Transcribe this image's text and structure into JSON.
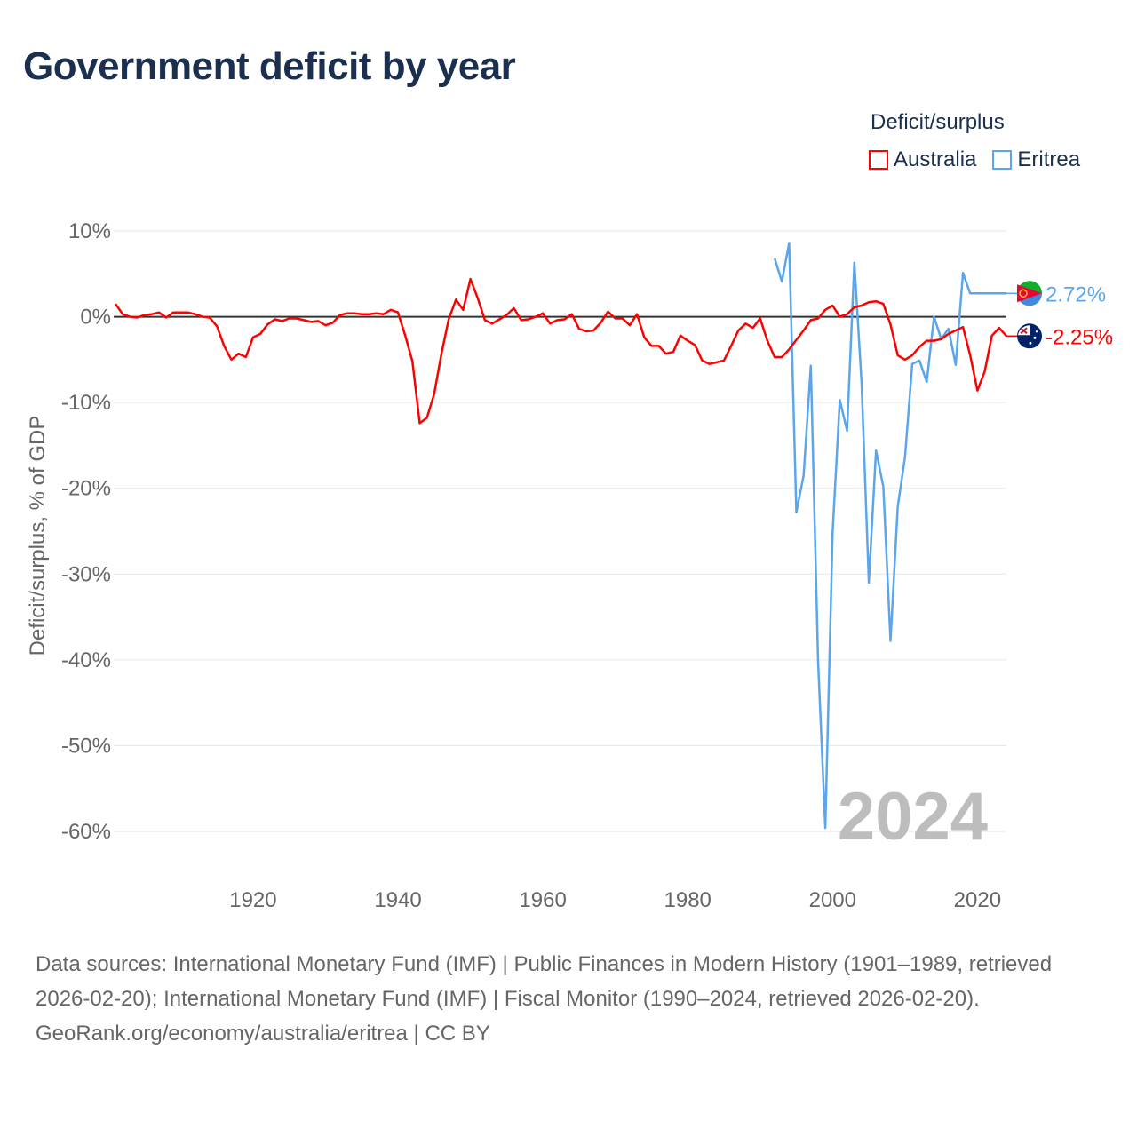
{
  "title": "Government deficit by year",
  "legend": {
    "title": "Deficit/surplus",
    "items": [
      {
        "label": "Australia",
        "color": "#ff0000"
      },
      {
        "label": "Eritrea",
        "color": "#5aa5ec"
      }
    ]
  },
  "footer": {
    "sources": "Data sources: International Monetary Fund (IMF) | Public Finances in Modern History (1901–1989, retrieved 2026-02-20); International Monetary Fund (IMF) | Fiscal Monitor (1990–2024, retrieved 2026-02-20).",
    "credit": "GeoRank.org/economy/australia/eritrea | CC BY"
  },
  "chart_data": {
    "type": "line",
    "title": "Government deficit by year",
    "ylabel": "Deficit/surplus, % of GDP",
    "xlabel": "",
    "ylim": [
      -60,
      10
    ],
    "xlim": [
      1901,
      2024
    ],
    "yticks": [
      {
        "v": 10,
        "label": "10%"
      },
      {
        "v": 0,
        "label": "0%"
      },
      {
        "v": -10,
        "label": "-10%"
      },
      {
        "v": -20,
        "label": "-20%"
      },
      {
        "v": -30,
        "label": "-30%"
      },
      {
        "v": -40,
        "label": "-40%"
      },
      {
        "v": -50,
        "label": "-50%"
      },
      {
        "v": -60,
        "label": "-60%"
      }
    ],
    "xticks": [
      {
        "v": 1920,
        "label": "1920"
      },
      {
        "v": 1940,
        "label": "1940"
      },
      {
        "v": 1960,
        "label": "1960"
      },
      {
        "v": 1980,
        "label": "1980"
      },
      {
        "v": 2000,
        "label": "2000"
      },
      {
        "v": 2020,
        "label": "2020"
      }
    ],
    "year_label": "2024",
    "series": [
      {
        "name": "Australia",
        "color": "#ff0000",
        "start_year": 1901,
        "end_label": "-2.25%",
        "values": [
          1.5,
          0.3,
          0,
          -0.1,
          0.2,
          0.3,
          0.5,
          -0.1,
          0.5,
          0.5,
          0.5,
          0.3,
          0,
          -0.1,
          -1.1,
          -3.4,
          -5,
          -4.3,
          -4.7,
          -2.4,
          -2,
          -0.9,
          -0.3,
          -0.5,
          -0.2,
          -0.2,
          -0.4,
          -0.6,
          -0.5,
          -1,
          -0.7,
          0.2,
          0.4,
          0.4,
          0.3,
          0.3,
          0.4,
          0.3,
          0.8,
          0.5,
          -2.2,
          -5.2,
          -12.4,
          -11.8,
          -9,
          -4.3,
          -0.3,
          2,
          0.8,
          4.4,
          2.2,
          -0.4,
          -0.8,
          -0.3,
          0.2,
          1,
          -0.4,
          -0.3,
          0,
          0.4,
          -0.8,
          -0.4,
          -0.3,
          0.3,
          -1.4,
          -1.7,
          -1.6,
          -0.7,
          0.6,
          -0.2,
          -0.2,
          -1,
          0.3,
          -2.4,
          -3.4,
          -3.4,
          -4.3,
          -4.1,
          -2.2,
          -2.8,
          -3.3,
          -5.1,
          -5.5,
          -5.3,
          -5.1,
          -3.4,
          -1.6,
          -0.8,
          -1.3,
          -0.2,
          -2.8,
          -4.7,
          -4.7,
          -3.8,
          -2.7,
          -1.6,
          -0.4,
          -0.2,
          0.8,
          1.3,
          0,
          0.3,
          1.1,
          1.3,
          1.7,
          1.8,
          1.5,
          -0.9,
          -4.5,
          -5,
          -4.5,
          -3.5,
          -2.8,
          -2.8,
          -2.6,
          -2,
          -1.6,
          -1.2,
          -4.5,
          -8.6,
          -6.4,
          -2.2,
          -1.3,
          -2.25
        ]
      },
      {
        "name": "Eritrea",
        "color": "#5aa5ec",
        "start_year": 1992,
        "end_label": "2.72%",
        "values": [
          6.8,
          4.1,
          8.6,
          -22.8,
          -18.5,
          -5.7,
          -40.2,
          -59.6,
          -25.2,
          -9.7,
          -13.3,
          6.3,
          -7.6,
          -31,
          -15.6,
          -19.8,
          -37.8,
          -22.1,
          -16.4,
          -5.5,
          -5.1,
          -7.6,
          0,
          -2.6,
          -1.4,
          -5.6,
          5.1,
          2.72,
          2.72,
          2.72,
          2.72,
          2.72,
          2.72
        ]
      }
    ]
  }
}
